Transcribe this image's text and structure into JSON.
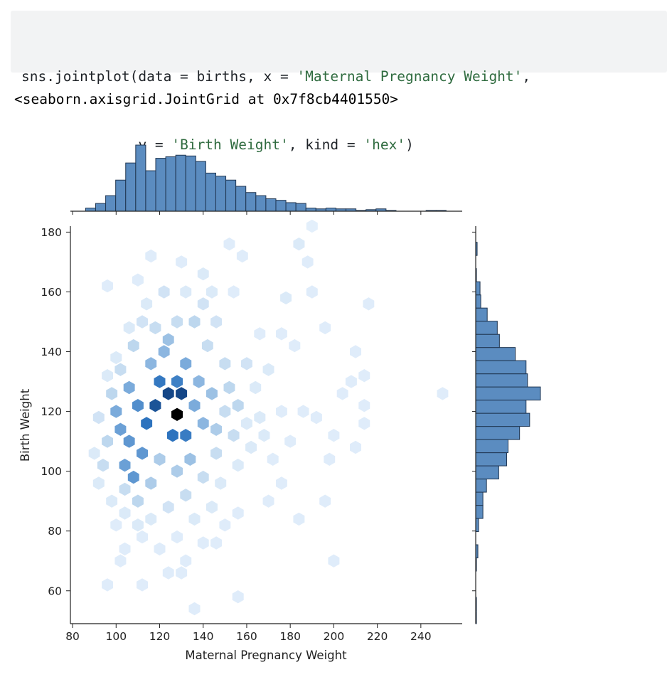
{
  "code": {
    "line1_prefix": "sns.jointplot(data = births, x = ",
    "line1_str": "'Maternal Pregnancy Weight'",
    "line1_suffix": ",",
    "line2_indent": "              ",
    "line2_prefix": "y = ",
    "line2_str1": "'Birth Weight'",
    "line2_mid": ", kind = ",
    "line2_str2": "'hex'",
    "line2_suffix": ")"
  },
  "output": {
    "text": "<seaborn.axisgrid.JointGrid at 0x7f8cb4401550>"
  },
  "colors": {
    "bar_fill": "#5b8cc0",
    "bar_edge": "#1f3550",
    "hex_dark": "#08306b"
  },
  "chart_data": {
    "type": "heatmap",
    "kind": "hex",
    "xlabel": "Maternal Pregnancy Weight",
    "ylabel": "Birth Weight",
    "xlim": [
      79,
      259
    ],
    "ylim": [
      49,
      182
    ],
    "xticks": [
      80,
      100,
      120,
      140,
      160,
      180,
      200,
      220,
      240
    ],
    "yticks": [
      60,
      80,
      100,
      120,
      140,
      160,
      180
    ],
    "hexbins": [
      [
        128,
        119,
        1.0
      ],
      [
        124,
        126,
        0.85
      ],
      [
        130,
        126,
        0.85
      ],
      [
        118,
        122,
        0.82
      ],
      [
        114,
        116,
        0.75
      ],
      [
        126,
        112,
        0.75
      ],
      [
        132,
        112,
        0.7
      ],
      [
        120,
        130,
        0.72
      ],
      [
        128,
        130,
        0.68
      ],
      [
        110,
        122,
        0.6
      ],
      [
        106,
        110,
        0.55
      ],
      [
        112,
        106,
        0.55
      ],
      [
        108,
        98,
        0.55
      ],
      [
        104,
        102,
        0.5
      ],
      [
        102,
        114,
        0.5
      ],
      [
        106,
        128,
        0.45
      ],
      [
        100,
        120,
        0.45
      ],
      [
        116,
        136,
        0.4
      ],
      [
        122,
        140,
        0.4
      ],
      [
        132,
        136,
        0.45
      ],
      [
        124,
        144,
        0.35
      ],
      [
        136,
        122,
        0.45
      ],
      [
        140,
        116,
        0.4
      ],
      [
        138,
        130,
        0.4
      ],
      [
        144,
        126,
        0.35
      ],
      [
        146,
        114,
        0.3
      ],
      [
        134,
        104,
        0.35
      ],
      [
        128,
        100,
        0.3
      ],
      [
        120,
        104,
        0.3
      ],
      [
        116,
        96,
        0.3
      ],
      [
        110,
        90,
        0.25
      ],
      [
        104,
        94,
        0.2
      ],
      [
        96,
        110,
        0.25
      ],
      [
        94,
        102,
        0.2
      ],
      [
        98,
        126,
        0.25
      ],
      [
        102,
        134,
        0.2
      ],
      [
        108,
        142,
        0.25
      ],
      [
        112,
        150,
        0.15
      ],
      [
        118,
        148,
        0.2
      ],
      [
        128,
        150,
        0.2
      ],
      [
        136,
        150,
        0.25
      ],
      [
        142,
        142,
        0.2
      ],
      [
        150,
        136,
        0.2
      ],
      [
        152,
        128,
        0.25
      ],
      [
        156,
        122,
        0.25
      ],
      [
        150,
        120,
        0.2
      ],
      [
        154,
        112,
        0.2
      ],
      [
        146,
        106,
        0.2
      ],
      [
        140,
        98,
        0.2
      ],
      [
        132,
        92,
        0.2
      ],
      [
        124,
        88,
        0.15
      ],
      [
        116,
        84,
        0.1
      ],
      [
        110,
        82,
        0.1
      ],
      [
        104,
        86,
        0.1
      ],
      [
        98,
        90,
        0.1
      ],
      [
        92,
        96,
        0.1
      ],
      [
        90,
        106,
        0.1
      ],
      [
        92,
        118,
        0.15
      ],
      [
        96,
        132,
        0.1
      ],
      [
        100,
        138,
        0.1
      ],
      [
        106,
        148,
        0.1
      ],
      [
        114,
        156,
        0.1
      ],
      [
        122,
        160,
        0.15
      ],
      [
        132,
        160,
        0.1
      ],
      [
        140,
        156,
        0.15
      ],
      [
        146,
        150,
        0.15
      ],
      [
        160,
        136,
        0.15
      ],
      [
        164,
        128,
        0.1
      ],
      [
        160,
        116,
        0.1
      ],
      [
        166,
        118,
        0.1
      ],
      [
        162,
        108,
        0.1
      ],
      [
        156,
        102,
        0.1
      ],
      [
        148,
        96,
        0.1
      ],
      [
        144,
        88,
        0.1
      ],
      [
        136,
        84,
        0.1
      ],
      [
        128,
        78,
        0.08
      ],
      [
        120,
        74,
        0.08
      ],
      [
        112,
        78,
        0.08
      ],
      [
        104,
        74,
        0.08
      ],
      [
        100,
        82,
        0.08
      ],
      [
        168,
        112,
        0.1
      ],
      [
        172,
        104,
        0.08
      ],
      [
        176,
        96,
        0.08
      ],
      [
        170,
        90,
        0.08
      ],
      [
        176,
        120,
        0.08
      ],
      [
        180,
        110,
        0.08
      ],
      [
        170,
        134,
        0.1
      ],
      [
        176,
        146,
        0.08
      ],
      [
        182,
        142,
        0.08
      ],
      [
        186,
        120,
        0.08
      ],
      [
        192,
        118,
        0.08
      ],
      [
        178,
        158,
        0.1
      ],
      [
        184,
        176,
        0.1
      ],
      [
        188,
        170,
        0.08
      ],
      [
        152,
        176,
        0.08
      ],
      [
        158,
        172,
        0.08
      ],
      [
        140,
        166,
        0.1
      ],
      [
        130,
        170,
        0.08
      ],
      [
        116,
        172,
        0.08
      ],
      [
        110,
        164,
        0.08
      ],
      [
        96,
        162,
        0.08
      ],
      [
        144,
        160,
        0.1
      ],
      [
        154,
        160,
        0.08
      ],
      [
        166,
        146,
        0.08
      ],
      [
        146,
        76,
        0.08
      ],
      [
        150,
        82,
        0.08
      ],
      [
        156,
        86,
        0.08
      ],
      [
        140,
        76,
        0.08
      ],
      [
        132,
        70,
        0.08
      ],
      [
        124,
        66,
        0.08
      ],
      [
        130,
        66,
        0.08
      ],
      [
        112,
        62,
        0.08
      ],
      [
        96,
        62,
        0.08
      ],
      [
        102,
        70,
        0.08
      ],
      [
        156,
        58,
        0.08
      ],
      [
        136,
        54,
        0.08
      ],
      [
        200,
        70,
        0.08
      ],
      [
        198,
        104,
        0.08
      ],
      [
        196,
        90,
        0.08
      ],
      [
        184,
        84,
        0.08
      ],
      [
        204,
        126,
        0.08
      ],
      [
        208,
        130,
        0.08
      ],
      [
        210,
        140,
        0.08
      ],
      [
        214,
        132,
        0.08
      ],
      [
        214,
        122,
        0.08
      ],
      [
        214,
        116,
        0.08
      ],
      [
        200,
        112,
        0.08
      ],
      [
        216,
        156,
        0.08
      ],
      [
        196,
        148,
        0.08
      ],
      [
        190,
        160,
        0.08
      ],
      [
        190,
        182,
        0.06
      ],
      [
        250,
        126,
        0.08
      ],
      [
        210,
        108,
        0.08
      ]
    ],
    "x_marginal": {
      "bin_edges": [
        86,
        90.6,
        95.2,
        99.8,
        104.4,
        109,
        113.6,
        118.2,
        122.8,
        127.4,
        132,
        136.6,
        141.2,
        145.8,
        150.4,
        155,
        159.6,
        164.2,
        168.8,
        173.4,
        178,
        182.6,
        187.2,
        191.8,
        196.4,
        201,
        205.6,
        210.2,
        214.8,
        219.4,
        224,
        228.6,
        233.2,
        237.8,
        242.4,
        247,
        251.6
      ],
      "values": [
        4,
        10,
        20,
        40,
        62,
        85,
        52,
        68,
        70,
        72,
        71,
        64,
        49,
        45,
        40,
        32,
        24,
        20,
        16,
        14,
        11,
        10,
        4,
        3,
        4,
        3,
        3,
        1,
        2,
        3,
        1,
        0,
        0,
        0,
        1,
        1
      ]
    },
    "y_marginal": {
      "bin_edges": [
        49,
        53.4,
        57.8,
        62.2,
        66.6,
        71,
        75.4,
        79.8,
        84.2,
        88.6,
        93,
        97.4,
        101.8,
        106.2,
        110.6,
        115,
        119.4,
        123.8,
        128.2,
        132.6,
        137,
        141.4,
        145.8,
        150.2,
        154.6,
        159,
        163.4,
        167.8,
        172.2,
        176.6
      ],
      "values": [
        1,
        1,
        0,
        0,
        1,
        3,
        0,
        4,
        10,
        10,
        15,
        32,
        43,
        45,
        61,
        75,
        70,
        90,
        72,
        70,
        55,
        33,
        30,
        16,
        7,
        6,
        1,
        0,
        2,
        0
      ]
    }
  }
}
